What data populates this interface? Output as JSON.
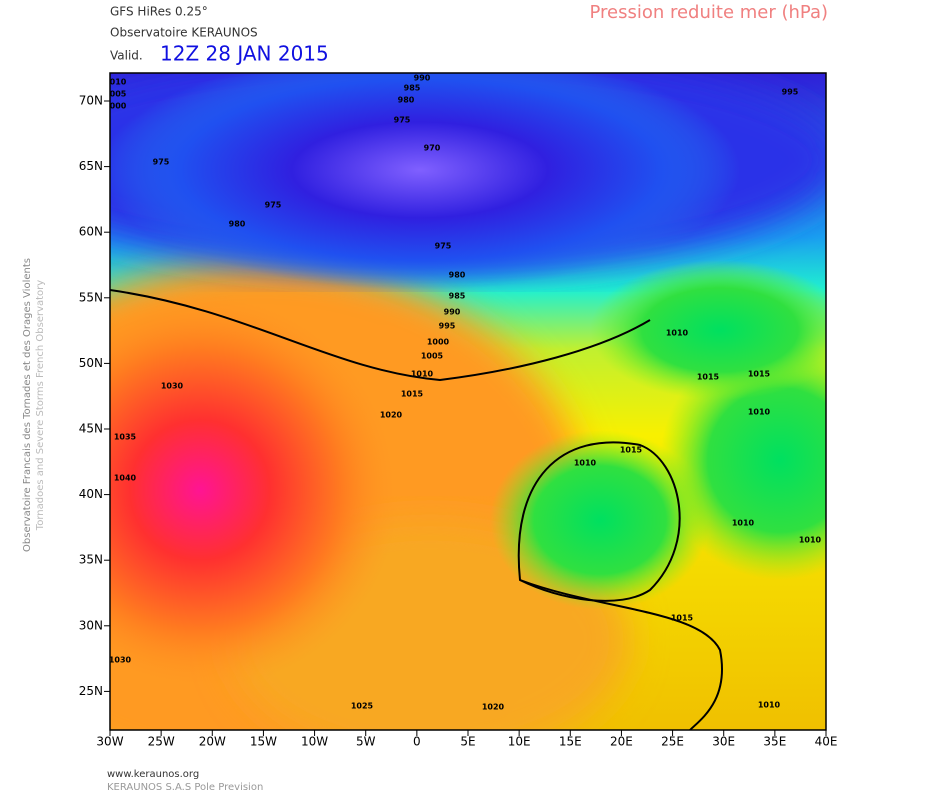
{
  "header": {
    "model": "GFS HiRes 0.25°",
    "source": "Observatoire KERAUNOS",
    "valid_prefix": "Valid.",
    "valid_time": "12Z 28 JAN 2015",
    "parameter": "Pression reduite mer (hPa)"
  },
  "side_text": {
    "line1": "Observatoire Francais des Tornades et des Orages Violents",
    "line2": "Tornadoes and Severe Storms French Observatory"
  },
  "lat_labels": [
    "70N",
    "65N",
    "60N",
    "55N",
    "50N",
    "45N",
    "40N",
    "35N",
    "30N",
    "25N"
  ],
  "lon_labels": [
    "30W",
    "25W",
    "20W",
    "15W",
    "10W",
    "5W",
    "0",
    "5E",
    "10E",
    "15E",
    "20E",
    "25E",
    "30E",
    "35E",
    "40E"
  ],
  "contour_labels": [
    "990",
    "985",
    "980",
    "975",
    "970",
    "975",
    "975",
    "980",
    "975",
    "980",
    "985",
    "990",
    "995",
    "1000",
    "1005",
    "1010",
    "1015",
    "1020",
    "1030",
    "1035",
    "1040",
    "1030",
    "1025",
    "1020",
    "1010",
    "1015",
    "1010",
    "1015",
    "1015",
    "1010",
    "1010",
    "1010",
    "1015",
    "1010",
    "995",
    "010",
    "005",
    "000"
  ],
  "footer": {
    "url": "www.keraunos.org",
    "company": "KERAUNOS S.A.S Pole Prevision"
  }
}
